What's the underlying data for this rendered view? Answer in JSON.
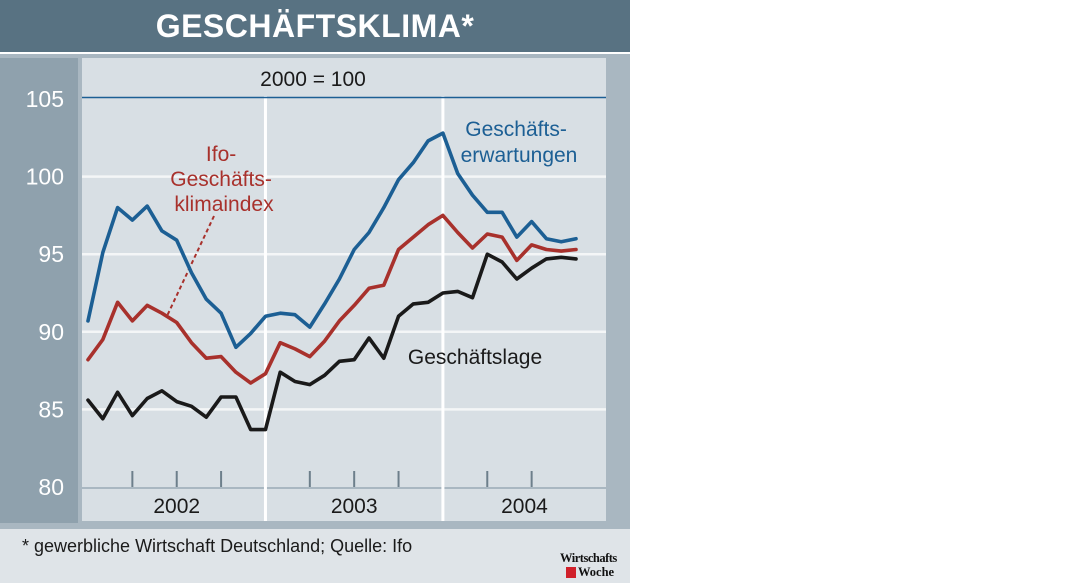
{
  "header": {
    "title": "GESCHÄFTSKLIMA*"
  },
  "chart_data": {
    "type": "line",
    "subtitle": "2000 = 100",
    "y_ticks": [
      80,
      85,
      90,
      95,
      100,
      105
    ],
    "ylim": [
      80,
      105
    ],
    "x_start": 2002.0,
    "x_end": 2004.75,
    "year_labels": [
      "2002",
      "2003",
      "2004"
    ],
    "grid": true,
    "series": [
      {
        "name": "Geschäftserwartungen",
        "label_lines": [
          "Geschäfts-",
          "erwartungen"
        ],
        "color": "#1c5f94",
        "values": [
          90.7,
          95.1,
          98.0,
          97.2,
          98.1,
          96.5,
          95.9,
          93.8,
          92.1,
          91.2,
          89.0,
          89.9,
          91.0,
          91.2,
          91.1,
          90.3,
          91.8,
          93.4,
          95.3,
          96.4,
          98.0,
          99.8,
          100.9,
          102.3,
          102.8,
          100.2,
          98.8,
          97.7,
          97.7,
          96.1,
          97.1,
          96.0,
          95.8,
          96.0
        ]
      },
      {
        "name": "Ifo-Geschäftsklimaindex",
        "label_lines": [
          "Ifo-",
          "Geschäfts-",
          "klimaindex"
        ],
        "color": "#a8312c",
        "values": [
          88.2,
          89.5,
          91.9,
          90.7,
          91.7,
          91.2,
          90.6,
          89.3,
          88.3,
          88.4,
          87.4,
          86.7,
          87.3,
          89.3,
          88.9,
          88.4,
          89.4,
          90.7,
          91.7,
          92.8,
          93.0,
          95.3,
          96.1,
          96.9,
          97.5,
          96.4,
          95.4,
          96.3,
          96.1,
          94.6,
          95.6,
          95.3,
          95.2,
          95.3
        ]
      },
      {
        "name": "Geschäftslage",
        "label_lines": [
          "Geschäftslage"
        ],
        "color": "#1a1a1a",
        "values": [
          85.6,
          84.4,
          86.1,
          84.6,
          85.7,
          86.2,
          85.5,
          85.2,
          84.5,
          85.8,
          85.8,
          83.7,
          83.7,
          87.4,
          86.8,
          86.6,
          87.2,
          88.1,
          88.2,
          89.6,
          88.3,
          91.0,
          91.8,
          91.9,
          92.5,
          92.6,
          92.2,
          95.0,
          94.5,
          93.4,
          94.1,
          94.7,
          94.8,
          94.7
        ]
      }
    ]
  },
  "footer": {
    "note": "* gewerbliche Wirtschaft Deutschland; Quelle: Ifo"
  },
  "logo": {
    "line1": "Wirtschafts",
    "line2": "Woche"
  }
}
